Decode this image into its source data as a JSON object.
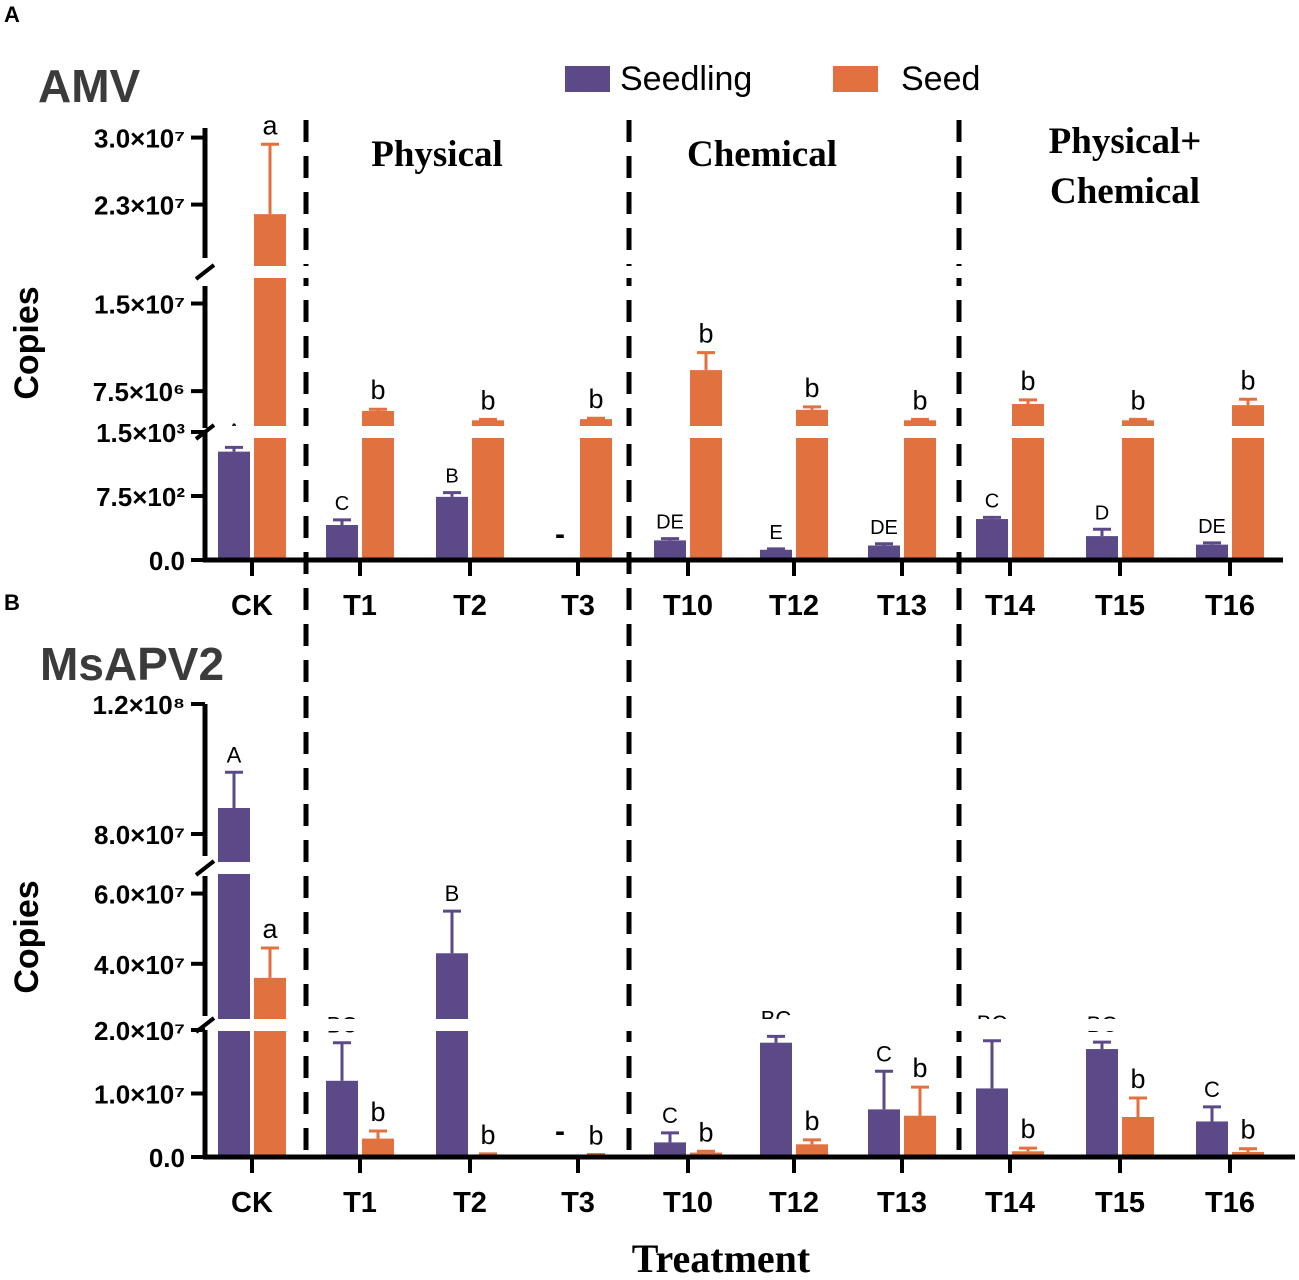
{
  "panels": {
    "a": {
      "letter": "A",
      "title": "AMV"
    },
    "b": {
      "letter": "B",
      "title": "MsAPV2"
    }
  },
  "legend": {
    "seedling_label": "Seedling",
    "seed_label": "Seed",
    "seedling_color": "#5b4a87",
    "seed_color": "#e1713f"
  },
  "groups": {
    "physical": "Physical",
    "chemical": "Chemical",
    "combined_line1": "Physical+",
    "combined_line2": "Chemical"
  },
  "axes": {
    "ylabel": "Copies",
    "xlabel": "Treatment"
  },
  "chart_data": [
    {
      "type": "bar",
      "panel": "A",
      "title": "AMV",
      "categories": [
        "CK",
        "T1",
        "T2",
        "T3",
        "T10",
        "T12",
        "T13",
        "T14",
        "T15",
        "T16"
      ],
      "ylabel": "Copies",
      "y_axis_type": "broken",
      "segments": [
        {
          "name": "low",
          "range": [
            0,
            1500
          ],
          "ticks": [
            0,
            750,
            1500
          ],
          "tick_labels": [
            "0.0",
            "7.5×10²",
            "1.5×10³"
          ]
        },
        {
          "name": "mid",
          "range": [
            4000000,
            16500000
          ],
          "ticks": [
            7500000,
            15000000
          ],
          "tick_labels": [
            "7.5×10⁶",
            "1.5×10⁷"
          ]
        },
        {
          "name": "high",
          "range": [
            17000000,
            31000000
          ],
          "ticks": [
            23000000,
            30000000
          ],
          "tick_labels": [
            "2.3×10⁷",
            "3.0×10⁷"
          ]
        }
      ],
      "series": [
        {
          "name": "Seedling",
          "values": [
            1270,
            410,
            740,
            0,
            230,
            120,
            170,
            480,
            280,
            180
          ],
          "errors": [
            50,
            60,
            50,
            0,
            20,
            10,
            20,
            20,
            80,
            20
          ],
          "letters": [
            "A",
            "C",
            "B",
            "-",
            "DE",
            "E",
            "DE",
            "C",
            "D",
            "DE"
          ]
        },
        {
          "name": "Seed",
          "values": [
            22000000,
            5800000,
            5000000,
            5100000,
            9300000,
            5900000,
            5000000,
            6400000,
            5000000,
            6300000
          ],
          "errors": [
            7300000,
            150000,
            80000,
            80000,
            1500000,
            250000,
            80000,
            350000,
            80000,
            500000
          ],
          "letters": [
            "a",
            "b",
            "b",
            "b",
            "b",
            "b",
            "b",
            "b",
            "b",
            "b"
          ]
        }
      ]
    },
    {
      "type": "bar",
      "panel": "B",
      "title": "MsAPV2",
      "categories": [
        "CK",
        "T1",
        "T2",
        "T3",
        "T10",
        "T12",
        "T13",
        "T14",
        "T15",
        "T16"
      ],
      "ylabel": "Copies",
      "xlabel": "Treatment",
      "y_axis_type": "broken",
      "segments": [
        {
          "name": "low",
          "range": [
            0,
            20000000
          ],
          "ticks": [
            0,
            10000000,
            20000000
          ],
          "tick_labels": [
            "0.0",
            "1.0×10⁷",
            "2.0×10⁷"
          ]
        },
        {
          "name": "mid",
          "range": [
            24000000,
            65000000
          ],
          "ticks": [
            40000000,
            60000000
          ],
          "tick_labels": [
            "4.0×10⁷",
            "6.0×10⁷"
          ]
        },
        {
          "name": "high",
          "range": [
            72000000,
            120000000
          ],
          "ticks": [
            80000000,
            120000000
          ],
          "tick_labels": [
            "8.0×10⁷",
            "1.2×10⁸"
          ]
        }
      ],
      "series": [
        {
          "name": "Seedling",
          "values": [
            88000000,
            12000000,
            43000000,
            0,
            2300000,
            18000000,
            7500000,
            10800000,
            17000000,
            5600000
          ],
          "errors": [
            11000000,
            6000000,
            12000000,
            0,
            1500000,
            1000000,
            6000000,
            7500000,
            1100000,
            2300000
          ],
          "letters": [
            "A",
            "BC",
            "B",
            "-",
            "C",
            "BC",
            "C",
            "BC",
            "BC",
            "C"
          ]
        },
        {
          "name": "Seed",
          "values": [
            36000000,
            2900000,
            400000,
            300000,
            700000,
            2000000,
            6500000,
            900000,
            6300000,
            800000
          ],
          "errors": [
            8500000,
            1200000,
            100000,
            100000,
            200000,
            700000,
            4500000,
            500000,
            3000000,
            500000
          ],
          "letters": [
            "a",
            "b",
            "b",
            "b",
            "b",
            "b",
            "b",
            "b",
            "b",
            "b"
          ]
        }
      ]
    }
  ]
}
